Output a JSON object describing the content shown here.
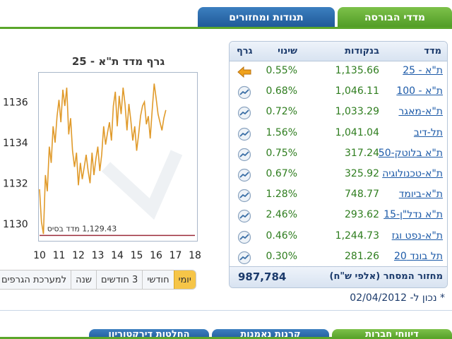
{
  "top_tabs": [
    {
      "label": "מדדי הבורסה",
      "active": true
    },
    {
      "label": "תנודות ומחזורים",
      "active": false
    }
  ],
  "chart": {
    "title": "גרף מדד ת\"א - 25",
    "base_label": "1,129.43 מדד בסיס",
    "y_ticks": [
      "1136",
      "1134",
      "1132",
      "1130"
    ],
    "x_ticks": [
      "10",
      "11",
      "12",
      "13",
      "14",
      "15",
      "16",
      "17",
      "18"
    ]
  },
  "chart_data": {
    "type": "line",
    "title": "גרף מדד ת\"א - 25",
    "xlim": [
      10,
      18
    ],
    "ylim": [
      1129.2,
      1137.4
    ],
    "base_value": 1129.43,
    "x": [
      10.0,
      10.1,
      10.2,
      10.3,
      10.4,
      10.5,
      10.6,
      10.7,
      10.8,
      10.9,
      11.0,
      11.1,
      11.2,
      11.3,
      11.4,
      11.5,
      11.6,
      11.7,
      11.8,
      11.9,
      12.0,
      12.1,
      12.2,
      12.3,
      12.4,
      12.5,
      12.6,
      12.7,
      12.8,
      12.9,
      13.0,
      13.1,
      13.2,
      13.3,
      13.4,
      13.5,
      13.6,
      13.7,
      13.8,
      13.9,
      14.0,
      14.1,
      14.2,
      14.3,
      14.4,
      14.5,
      14.6,
      14.7,
      14.8,
      14.9,
      15.0,
      15.1,
      15.2,
      15.3,
      15.4,
      15.5,
      15.6,
      15.7,
      15.8,
      15.9,
      16.0,
      16.1,
      16.2,
      16.3,
      16.4,
      16.5
    ],
    "y": [
      1131.7,
      1130.1,
      1129.5,
      1132.4,
      1131.6,
      1133.8,
      1133.0,
      1134.8,
      1134.0,
      1135.3,
      1136.1,
      1135.0,
      1136.6,
      1135.8,
      1136.7,
      1134.4,
      1135.2,
      1133.6,
      1132.8,
      1133.5,
      1131.9,
      1133.0,
      1132.2,
      1132.8,
      1133.4,
      1132.6,
      1132.0,
      1133.5,
      1132.4,
      1133.2,
      1133.8,
      1132.6,
      1133.4,
      1134.8,
      1133.9,
      1134.5,
      1135.0,
      1134.1,
      1135.8,
      1136.5,
      1134.8,
      1136.3,
      1135.4,
      1136.7,
      1135.9,
      1134.6,
      1135.9,
      1135.1,
      1134.1,
      1134.8,
      1133.6,
      1134.4,
      1135.3,
      1135.8,
      1136.0,
      1134.9,
      1135.3,
      1134.2,
      1135.6,
      1136.9,
      1136.2,
      1135.4,
      1135.0,
      1134.6,
      1135.2,
      1135.6
    ]
  },
  "range_buttons": [
    {
      "label": "יומי",
      "active": true
    },
    {
      "label": "חודשי",
      "active": false
    },
    {
      "label": "3 חודשים",
      "active": false
    },
    {
      "label": "שנה",
      "active": false
    },
    {
      "label": "למערכת הגרפים",
      "active": false
    }
  ],
  "table": {
    "headers": {
      "index": "מדד",
      "points": "בנקודות",
      "change": "שינוי",
      "graph": "גרף"
    },
    "rows": [
      {
        "name": "ת\"א - 25",
        "points": "1,135.66",
        "change": "0.55%",
        "icon": "arrow-left-icon"
      },
      {
        "name": "ת\"א - 100",
        "points": "1,046.11",
        "change": "0.68%",
        "icon": "chart-icon"
      },
      {
        "name": "ת\"א-מאגר",
        "points": "1,033.29",
        "change": "0.72%",
        "icon": "chart-icon"
      },
      {
        "name": "תל-דיב",
        "points": "1,041.04",
        "change": "1.56%",
        "icon": "chart-icon"
      },
      {
        "name": "ת\"א בלוטק-50",
        "points": "317.24",
        "change": "0.75%",
        "icon": "chart-icon"
      },
      {
        "name": "ת\"א-טכנולוגיה",
        "points": "325.92",
        "change": "0.67%",
        "icon": "chart-icon"
      },
      {
        "name": "ת\"א-ביומד",
        "points": "748.77",
        "change": "1.28%",
        "icon": "chart-icon"
      },
      {
        "name": "ת\"א נדל\"ן-15",
        "points": "293.62",
        "change": "2.46%",
        "icon": "chart-icon"
      },
      {
        "name": "ת\"א-נפט וגז",
        "points": "1,244.73",
        "change": "0.46%",
        "icon": "chart-icon"
      },
      {
        "name": "תל בונד 20",
        "points": "281.26",
        "change": "0.30%",
        "icon": "chart-icon"
      }
    ],
    "turnover_label": "מחזור המסחר (אלפי ש\"ח)",
    "turnover_value": "987,784"
  },
  "updated_text": "* נכון ל- 02/04/2012",
  "bottom_tabs": [
    {
      "label": "דיווחי חברות"
    },
    {
      "label": "קרנות נאמנות"
    },
    {
      "label": "החלטות דירקטוריון"
    }
  ],
  "colors": {
    "green_tab": "#5aa62a",
    "blue_tab": "#1e5796",
    "line": "#e09a2a",
    "link": "#1c5aa8",
    "positive": "#2e7d1e",
    "active_range": "#f6c548"
  }
}
